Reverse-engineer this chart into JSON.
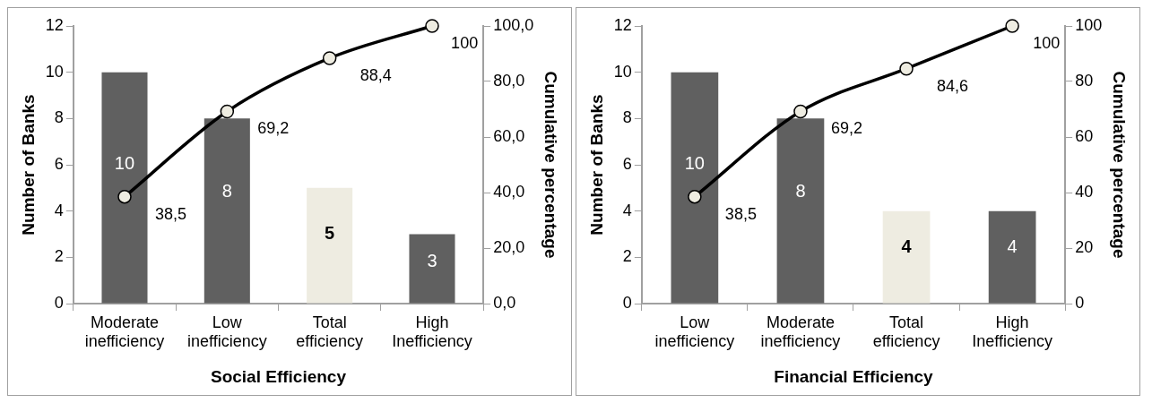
{
  "chart_data": [
    {
      "type": "bar",
      "xlabel": "Social Efficiency",
      "ylabel": "Number of Banks",
      "y2label": "Cumulative percentage",
      "categories": [
        "Moderate inefficiency",
        "Low inefficiency",
        "Total efficiency",
        "High Inefficiency"
      ],
      "ylim": [
        0,
        12
      ],
      "yticks": [
        0,
        2,
        4,
        6,
        8,
        10,
        12
      ],
      "y2lim": [
        0,
        100
      ],
      "y2ticks": [
        {
          "value": 0,
          "label": "0,0"
        },
        {
          "value": 20,
          "label": "20,0"
        },
        {
          "value": 40,
          "label": "40,0"
        },
        {
          "value": 60,
          "label": "60,0"
        },
        {
          "value": 80,
          "label": "80,0"
        },
        {
          "value": 100,
          "label": "100,0"
        }
      ],
      "marker": "circle",
      "series": [
        {
          "colors": [
            "#606060",
            "#606060",
            "#eeece1",
            "#606060"
          ],
          "values": [
            10,
            8,
            5,
            3
          ],
          "value_labels": [
            "10",
            "8",
            "5",
            "3"
          ]
        },
        {
          "type": "line",
          "axis": "y2",
          "color": "#000000",
          "values": [
            38.5,
            69.2,
            88.4,
            100
          ],
          "value_labels": [
            "38,5",
            "69,2",
            "88,4",
            "100"
          ]
        }
      ]
    },
    {
      "type": "bar",
      "xlabel": "Financial Efficiency",
      "ylabel": "Number of Banks",
      "y2label": "Cumulative percentage",
      "categories": [
        "Low inefficiency",
        "Moderate inefficiency",
        "Total efficiency",
        "High Inefficiency"
      ],
      "ylim": [
        0,
        12
      ],
      "yticks": [
        0,
        2,
        4,
        6,
        8,
        10,
        12
      ],
      "y2lim": [
        0,
        100
      ],
      "y2ticks": [
        0,
        20,
        40,
        60,
        80,
        100
      ],
      "marker": "circle",
      "series": [
        {
          "colors": [
            "#606060",
            "#606060",
            "#eeece1",
            "#606060"
          ],
          "values": [
            10,
            8,
            4,
            4
          ],
          "value_labels": [
            "10",
            "8",
            "4",
            "4"
          ]
        },
        {
          "type": "line",
          "axis": "y2",
          "color": "#000000",
          "values": [
            38.5,
            69.2,
            84.6,
            100
          ],
          "value_labels": [
            "38,5",
            "69,2",
            "84,6",
            "100"
          ]
        }
      ]
    }
  ]
}
